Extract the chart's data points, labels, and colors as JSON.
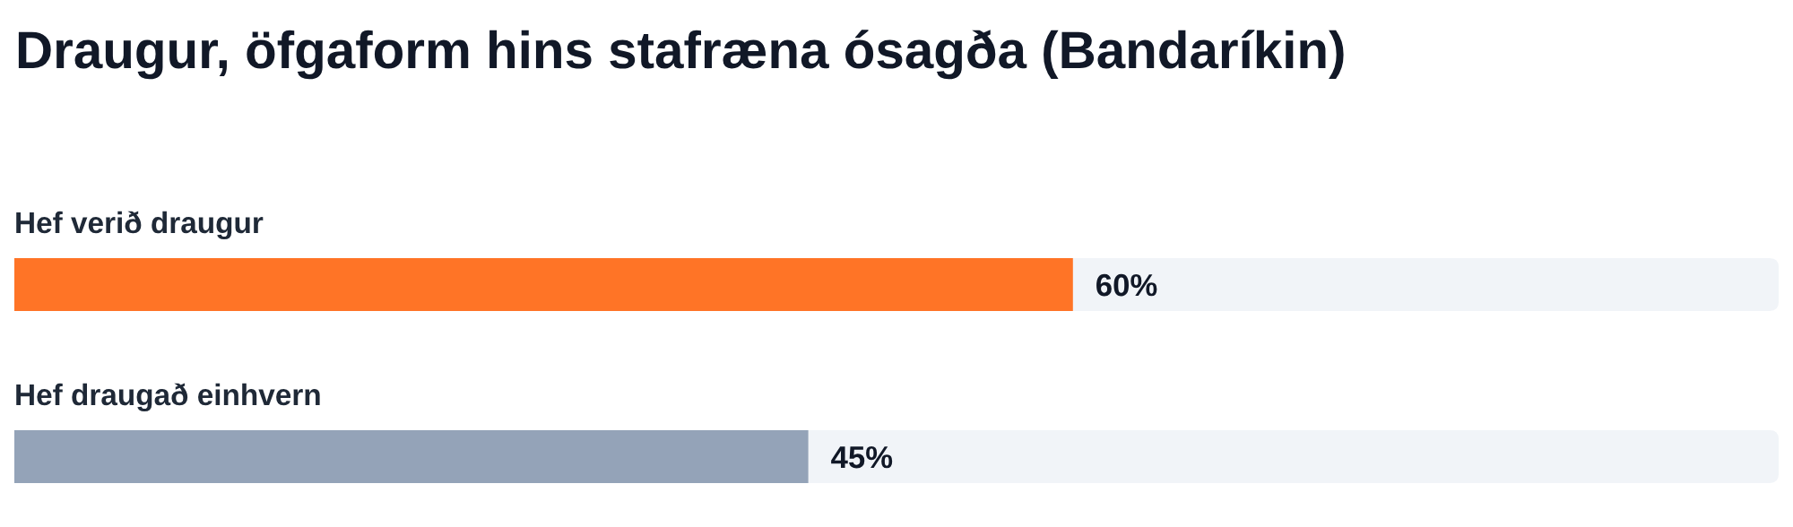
{
  "chart_data": {
    "type": "bar",
    "orientation": "horizontal",
    "title": "Draugur, öfgaform hins stafræna ósagða (Bandaríkin)",
    "categories": [
      "Hef verið draugur",
      "Hef draugað einhvern"
    ],
    "values": [
      60,
      45
    ],
    "colors": [
      "#ff7426",
      "#94a3b8"
    ],
    "value_labels": [
      "60%",
      "45%"
    ],
    "xlim": [
      0,
      100
    ],
    "tick_labels": "y"
  }
}
